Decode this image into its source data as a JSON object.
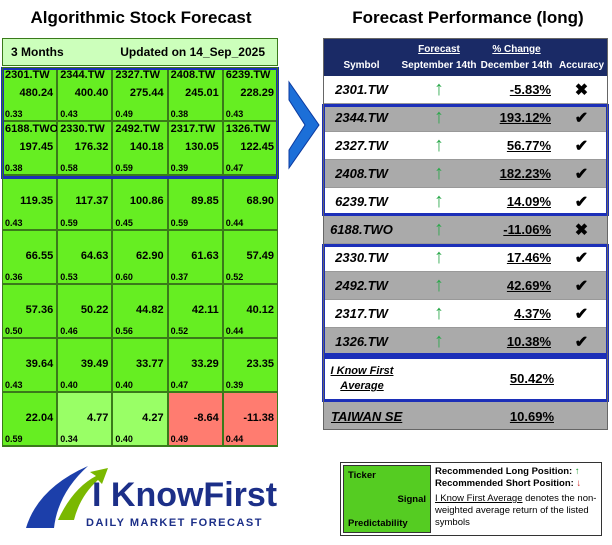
{
  "left": {
    "title": "Algorithmic Stock Forecast",
    "period": "3 Months",
    "updated": "Updated on 14_Sep_2025",
    "rows": [
      [
        {
          "ticker": "2301.TW",
          "signal": "480.24",
          "predictability": "0.33"
        },
        {
          "ticker": "2344.TW",
          "signal": "400.40",
          "predictability": "0.43"
        },
        {
          "ticker": "2327.TW",
          "signal": "275.44",
          "predictability": "0.49"
        },
        {
          "ticker": "2408.TW",
          "signal": "245.01",
          "predictability": "0.38"
        },
        {
          "ticker": "6239.TW",
          "signal": "228.29",
          "predictability": "0.43"
        }
      ],
      [
        {
          "ticker": "6188.TWO",
          "signal": "197.45",
          "predictability": "0.38"
        },
        {
          "ticker": "2330.TW",
          "signal": "176.32",
          "predictability": "0.58"
        },
        {
          "ticker": "2492.TW",
          "signal": "140.18",
          "predictability": "0.59"
        },
        {
          "ticker": "2317.TW",
          "signal": "130.05",
          "predictability": "0.39"
        },
        {
          "ticker": "1326.TW",
          "signal": "122.45",
          "predictability": "0.47"
        }
      ],
      [
        {
          "signal": "119.35",
          "predictability": "0.43"
        },
        {
          "signal": "117.37",
          "predictability": "0.59"
        },
        {
          "signal": "100.86",
          "predictability": "0.45"
        },
        {
          "signal": "89.85",
          "predictability": "0.59"
        },
        {
          "signal": "68.90",
          "predictability": "0.44"
        }
      ],
      [
        {
          "signal": "66.55",
          "predictability": "0.36"
        },
        {
          "signal": "64.63",
          "predictability": "0.53"
        },
        {
          "signal": "62.90",
          "predictability": "0.60"
        },
        {
          "signal": "61.63",
          "predictability": "0.37"
        },
        {
          "signal": "57.49",
          "predictability": "0.52"
        }
      ],
      [
        {
          "signal": "57.36",
          "predictability": "0.50"
        },
        {
          "signal": "50.22",
          "predictability": "0.46"
        },
        {
          "signal": "44.82",
          "predictability": "0.56"
        },
        {
          "signal": "42.11",
          "predictability": "0.52"
        },
        {
          "signal": "40.12",
          "predictability": "0.44"
        }
      ],
      [
        {
          "signal": "39.64",
          "predictability": "0.43"
        },
        {
          "signal": "39.49",
          "predictability": "0.40"
        },
        {
          "signal": "33.77",
          "predictability": "0.40"
        },
        {
          "signal": "33.29",
          "predictability": "0.47"
        },
        {
          "signal": "23.35",
          "predictability": "0.39"
        }
      ],
      [
        {
          "signal": "22.04",
          "predictability": "0.59"
        },
        {
          "signal": "4.77",
          "predictability": "0.34",
          "color": "#99ff66"
        },
        {
          "signal": "4.27",
          "predictability": "0.40",
          "color": "#99ff66"
        },
        {
          "signal": "-8.64",
          "predictability": "0.49",
          "color": "#ff7c70"
        },
        {
          "signal": "-11.38",
          "predictability": "0.44",
          "color": "#ff7c70"
        }
      ]
    ]
  },
  "right": {
    "title": "Forecast Performance (long)",
    "headers": {
      "symbol": "Symbol",
      "forecast": "Forecast",
      "forecast_date": "September 14th",
      "change": "% Change",
      "change_date": "December 14th",
      "accuracy": "Accuracy"
    },
    "rows": [
      {
        "symbol": "2301.TW",
        "signal": "↑",
        "change": "-5.83%",
        "accuracy": "✖"
      },
      {
        "symbol": "2344.TW",
        "signal": "↑",
        "change": "193.12%",
        "accuracy": "✔"
      },
      {
        "symbol": "2327.TW",
        "signal": "↑",
        "change": "56.77%",
        "accuracy": "✔"
      },
      {
        "symbol": "2408.TW",
        "signal": "↑",
        "change": "182.23%",
        "accuracy": "✔"
      },
      {
        "symbol": "6239.TW",
        "signal": "↑",
        "change": "14.09%",
        "accuracy": "✔"
      },
      {
        "symbol": "6188.TWO",
        "signal": "↑",
        "change": "-11.06%",
        "accuracy": "✖"
      },
      {
        "symbol": "2330.TW",
        "signal": "↑",
        "change": "17.46%",
        "accuracy": "✔"
      },
      {
        "symbol": "2492.TW",
        "signal": "↑",
        "change": "42.69%",
        "accuracy": "✔"
      },
      {
        "symbol": "2317.TW",
        "signal": "↑",
        "change": "4.37%",
        "accuracy": "✔"
      },
      {
        "symbol": "1326.TW",
        "signal": "↑",
        "change": "10.38%",
        "accuracy": "✔"
      }
    ],
    "average": {
      "label": "I Know First Average",
      "change": "50.42%"
    },
    "benchmark": {
      "label": "TAIWAN SE",
      "change": "10.69%"
    }
  },
  "legend": {
    "ticker": "Ticker",
    "signal": "Signal",
    "predictability": "Predictability",
    "long": "Recommended Long Position:",
    "long_icon": "↑",
    "short": "Recommended Short Position:",
    "short_icon": "↓",
    "average_name": "I Know First Average",
    "average_note": " denotes the non-weighted average return of the listed symbols"
  },
  "logo": {
    "name": "I KnowFirst",
    "tagline": "DAILY MARKET FORECAST"
  }
}
